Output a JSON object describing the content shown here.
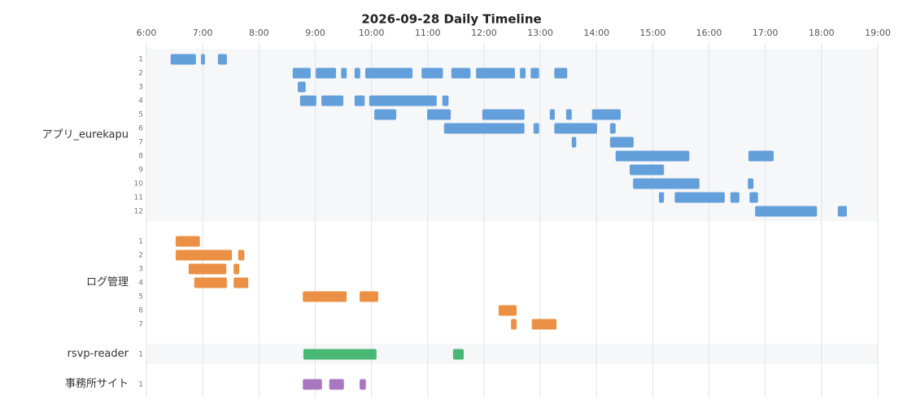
{
  "chart_data": {
    "type": "timeline",
    "title": "2026-09-28 Daily Timeline",
    "xlim": [
      6,
      19
    ],
    "xticks": [
      {
        "value": 6,
        "label": "6:00"
      },
      {
        "value": 7,
        "label": "7:00"
      },
      {
        "value": 8,
        "label": "8:00"
      },
      {
        "value": 9,
        "label": "9:00"
      },
      {
        "value": 10,
        "label": "10:00"
      },
      {
        "value": 11,
        "label": "11:00"
      },
      {
        "value": 12,
        "label": "12:00"
      },
      {
        "value": 13,
        "label": "13:00"
      },
      {
        "value": 14,
        "label": "14:00"
      },
      {
        "value": 15,
        "label": "15:00"
      },
      {
        "value": 16,
        "label": "16:00"
      },
      {
        "value": 17,
        "label": "17:00"
      },
      {
        "value": 18,
        "label": "18:00"
      },
      {
        "value": 19,
        "label": "19:00"
      }
    ],
    "grid": true,
    "groups": [
      {
        "name": "アプリ_eurekapu",
        "color": "#629fdb",
        "rows": [
          {
            "label": "1",
            "segments": [
              [
                6.43,
                6.88
              ],
              [
                6.97,
                7.04
              ],
              [
                7.27,
                7.43
              ]
            ]
          },
          {
            "label": "2",
            "segments": [
              [
                8.6,
                8.92
              ],
              [
                9.01,
                9.37
              ],
              [
                9.46,
                9.56
              ],
              [
                9.7,
                9.8
              ],
              [
                9.89,
                10.73
              ],
              [
                10.89,
                11.27
              ],
              [
                11.42,
                11.76
              ],
              [
                11.86,
                12.55
              ],
              [
                12.64,
                12.74
              ],
              [
                12.83,
                12.98
              ],
              [
                13.25,
                13.48
              ]
            ]
          },
          {
            "label": "3",
            "segments": [
              [
                8.69,
                8.83
              ]
            ]
          },
          {
            "label": "4",
            "segments": [
              [
                8.73,
                9.02
              ],
              [
                9.11,
                9.5
              ],
              [
                9.7,
                9.88
              ],
              [
                9.96,
                11.16
              ],
              [
                11.26,
                11.37
              ]
            ]
          },
          {
            "label": "5",
            "segments": [
              [
                10.05,
                10.44
              ],
              [
                10.99,
                11.41
              ],
              [
                11.97,
                12.72
              ],
              [
                13.17,
                13.26
              ],
              [
                13.46,
                13.56
              ],
              [
                13.92,
                14.43
              ]
            ]
          },
          {
            "label": "6",
            "segments": [
              [
                11.29,
                12.72
              ],
              [
                12.88,
                12.98
              ],
              [
                13.25,
                14.01
              ],
              [
                14.24,
                14.34
              ]
            ]
          },
          {
            "label": "7",
            "segments": [
              [
                13.56,
                13.64
              ],
              [
                14.24,
                14.66
              ]
            ]
          },
          {
            "label": "8",
            "segments": [
              [
                14.34,
                15.65
              ],
              [
                16.7,
                17.15
              ]
            ]
          },
          {
            "label": "9",
            "segments": [
              [
                14.59,
                15.2
              ]
            ]
          },
          {
            "label": "10",
            "segments": [
              [
                14.65,
                15.83
              ],
              [
                16.69,
                16.79
              ]
            ]
          },
          {
            "label": "11",
            "segments": [
              [
                15.11,
                15.2
              ],
              [
                15.39,
                16.28
              ],
              [
                16.38,
                16.54
              ],
              [
                16.72,
                16.87
              ]
            ]
          },
          {
            "label": "12",
            "segments": [
              [
                16.82,
                17.92
              ],
              [
                18.29,
                18.45
              ]
            ]
          }
        ]
      },
      {
        "name": "ログ管理",
        "color": "#ea9145",
        "rows": [
          {
            "label": "1",
            "segments": [
              [
                6.52,
                6.95
              ]
            ]
          },
          {
            "label": "2",
            "segments": [
              [
                6.52,
                7.52
              ],
              [
                7.63,
                7.74
              ]
            ]
          },
          {
            "label": "3",
            "segments": [
              [
                6.75,
                7.42
              ],
              [
                7.55,
                7.65
              ]
            ]
          },
          {
            "label": "4",
            "segments": [
              [
                6.85,
                7.43
              ],
              [
                7.55,
                7.81
              ]
            ]
          },
          {
            "label": "5",
            "segments": [
              [
                8.78,
                9.56
              ],
              [
                9.79,
                10.12
              ]
            ]
          },
          {
            "label": "6",
            "segments": [
              [
                12.26,
                12.58
              ]
            ]
          },
          {
            "label": "7",
            "segments": [
              [
                12.48,
                12.58
              ],
              [
                12.85,
                13.29
              ]
            ]
          }
        ]
      },
      {
        "name": "rsvp-reader",
        "color": "#48b874",
        "rows": [
          {
            "label": "1",
            "segments": [
              [
                8.79,
                10.09
              ],
              [
                11.45,
                11.64
              ]
            ]
          }
        ]
      },
      {
        "name": "事務所サイト",
        "color": "#a877c0",
        "rows": [
          {
            "label": "1",
            "segments": [
              [
                8.78,
                9.12
              ],
              [
                9.25,
                9.51
              ],
              [
                9.79,
                9.9
              ]
            ]
          }
        ]
      }
    ]
  }
}
